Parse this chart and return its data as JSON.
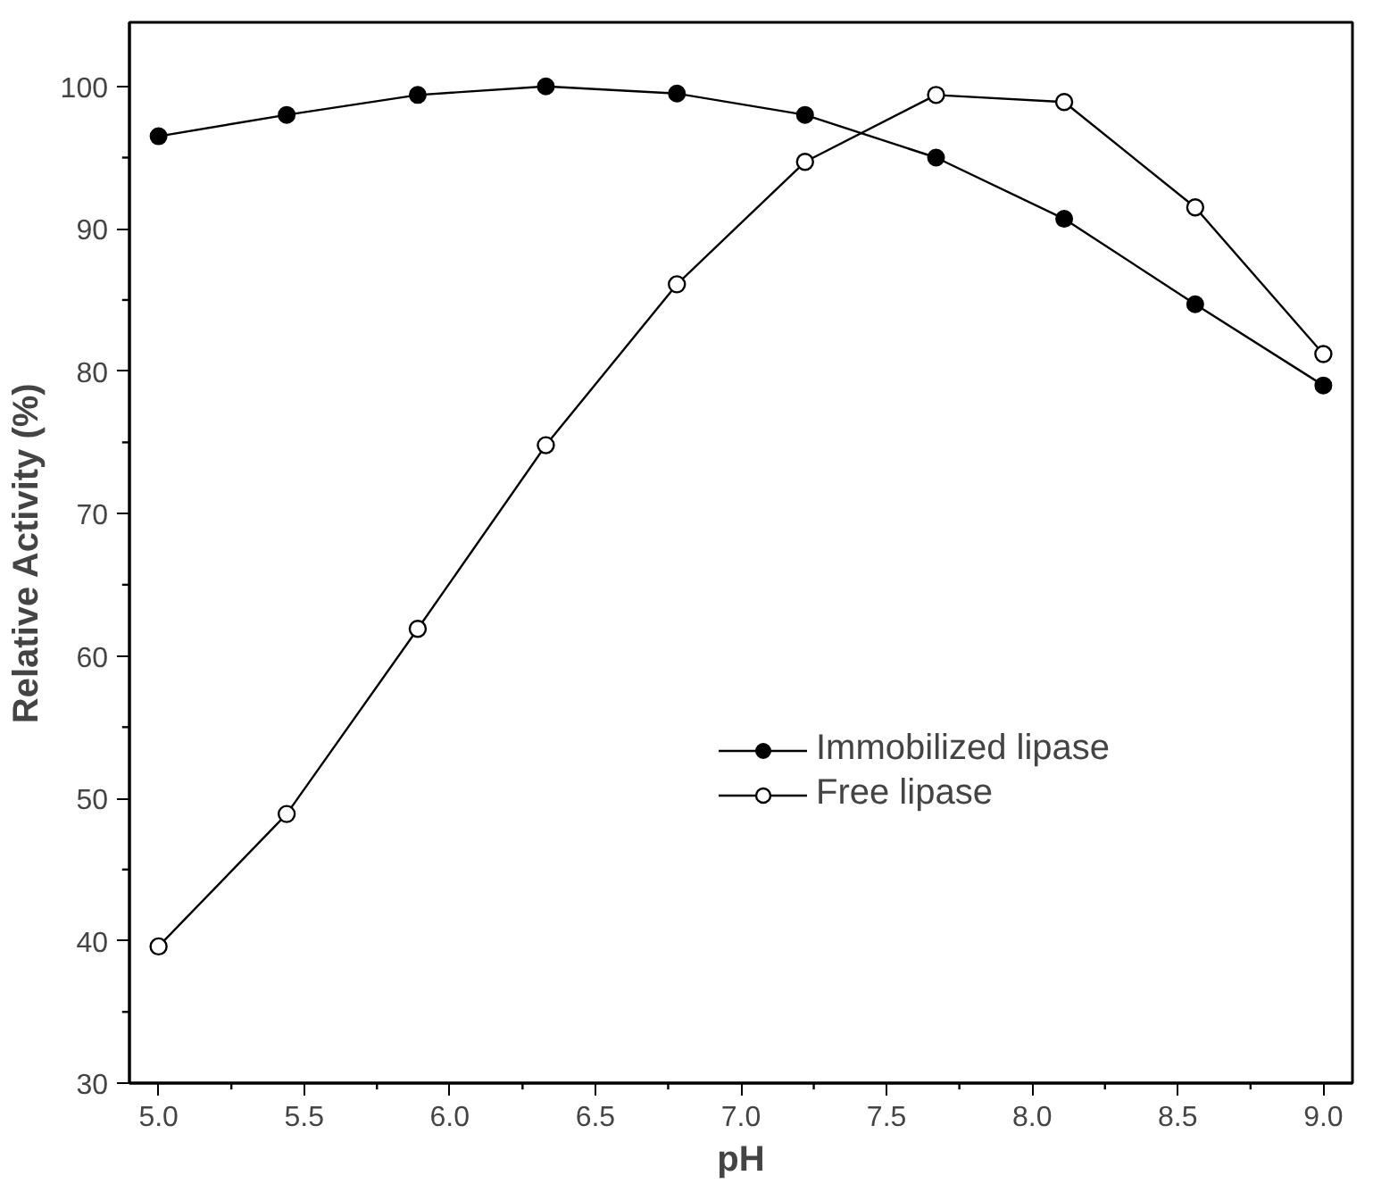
{
  "chart_data": {
    "type": "line",
    "xlabel": "pH",
    "ylabel": "Relative Activity (%)",
    "x": [
      5.0,
      5.44,
      5.89,
      6.33,
      6.78,
      7.22,
      7.67,
      8.11,
      8.56,
      9.0
    ],
    "series": [
      {
        "name": "Immobilized lipase",
        "color": "#000000",
        "marker": "circle",
        "values": [
          96.5,
          98,
          99.4,
          100,
          99.5,
          98,
          95,
          90.7,
          84.7,
          79
        ]
      },
      {
        "name": "Free lipase",
        "color": "#000000",
        "marker": "open circle",
        "values": [
          39.6,
          48.9,
          61.9,
          74.8,
          86.1,
          94.7,
          99.4,
          98.9,
          91.5,
          81.2
        ]
      }
    ],
    "xlim": [
      4.9,
      9.1
    ],
    "ylim": [
      30,
      104.5
    ],
    "xticks": [
      {
        "value": 5.0,
        "label": "5.0"
      },
      {
        "value": 5.5,
        "label": "5.5"
      },
      {
        "value": 6.0,
        "label": "6.0"
      },
      {
        "value": 6.5,
        "label": "6.5"
      },
      {
        "value": 7.0,
        "label": "7.0"
      },
      {
        "value": 7.5,
        "label": "7.5"
      },
      {
        "value": 8.0,
        "label": "8.0"
      },
      {
        "value": 8.5,
        "label": "8.5"
      },
      {
        "value": 9.0,
        "label": "9.0"
      }
    ],
    "yticks": [
      30,
      40,
      50,
      60,
      70,
      80,
      90,
      100
    ],
    "grid": false,
    "legend": "bottom right",
    "line_style": "solid"
  }
}
